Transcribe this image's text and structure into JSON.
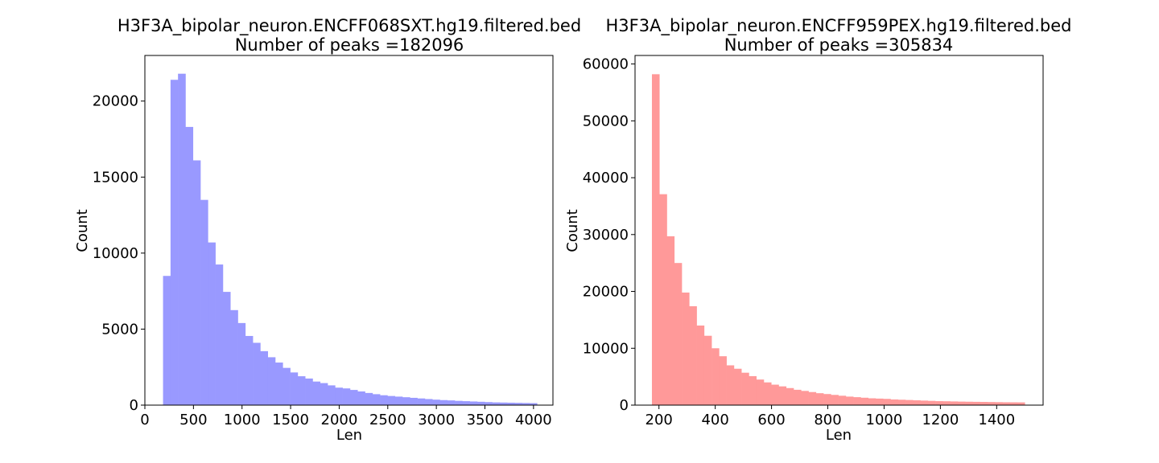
{
  "chart_data": [
    {
      "type": "bar",
      "title_line1": "H3F3A_bipolar_neuron.ENCFF068SXT.hg19.filtered.bed",
      "title_line2": "Number of peaks =182096",
      "xlabel": "Len",
      "ylabel": "Count",
      "color": "#9999ff",
      "xlim": [
        0,
        4200
      ],
      "ylim": [
        0,
        23000
      ],
      "xticks": [
        0,
        500,
        1000,
        1500,
        2000,
        2500,
        3000,
        3500,
        4000
      ],
      "yticks": [
        0,
        5000,
        10000,
        15000,
        20000
      ],
      "bin_start": 187,
      "bin_width": 77,
      "values": [
        8500,
        21400,
        21800,
        18300,
        16100,
        13500,
        10700,
        9250,
        7450,
        6250,
        5400,
        4550,
        4100,
        3550,
        3150,
        2800,
        2450,
        2150,
        1900,
        1750,
        1550,
        1450,
        1300,
        1150,
        1100,
        1000,
        900,
        800,
        720,
        650,
        600,
        560,
        520,
        480,
        440,
        400,
        360,
        330,
        310,
        280,
        260,
        240,
        220,
        200,
        180,
        170,
        160,
        150,
        140,
        130
      ]
    },
    {
      "type": "bar",
      "title_line1": "H3F3A_bipolar_neuron.ENCFF959PEX.hg19.filtered.bed",
      "title_line2": "Number of peaks =305834",
      "xlabel": "Len",
      "ylabel": "Count",
      "color": "#ff9999",
      "xlim": [
        115,
        1565
      ],
      "ylim": [
        0,
        61500
      ],
      "xticks": [
        200,
        400,
        600,
        800,
        1000,
        1200,
        1400
      ],
      "yticks": [
        0,
        10000,
        20000,
        30000,
        40000,
        50000,
        60000
      ],
      "bin_start": 175,
      "bin_width": 26.5,
      "values": [
        58200,
        37100,
        29700,
        25000,
        19800,
        17400,
        14000,
        12200,
        10000,
        8600,
        7000,
        6400,
        5700,
        5100,
        4500,
        4000,
        3600,
        3300,
        3000,
        2700,
        2500,
        2300,
        2100,
        1950,
        1800,
        1650,
        1500,
        1400,
        1300,
        1200,
        1150,
        1100,
        1000,
        950,
        900,
        850,
        800,
        750,
        700,
        680,
        650,
        620,
        600,
        580,
        560,
        540,
        520,
        500,
        490,
        480
      ]
    }
  ]
}
